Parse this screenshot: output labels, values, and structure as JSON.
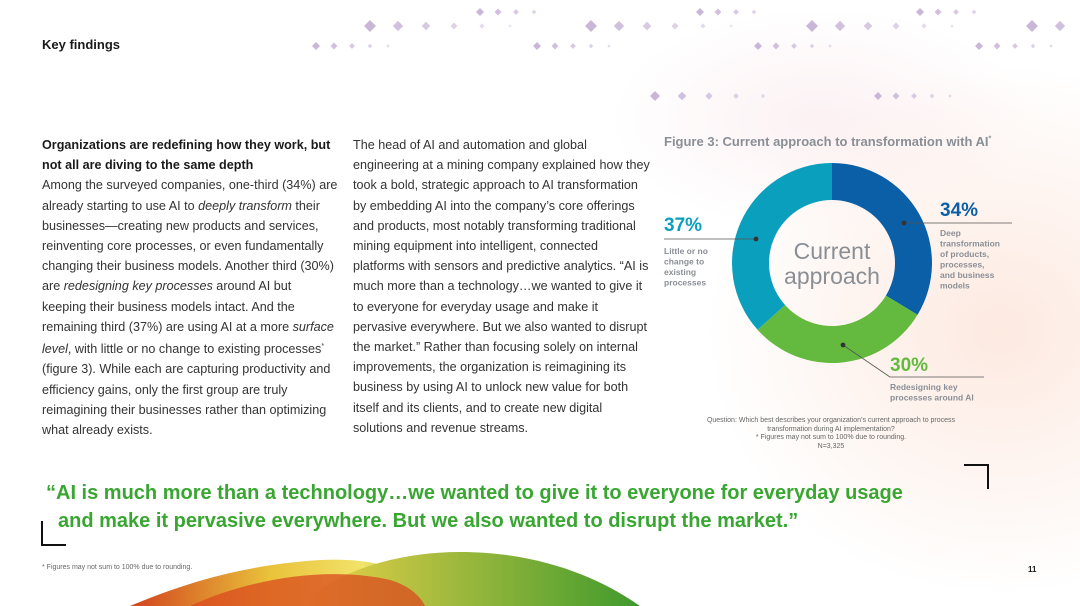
{
  "header": {
    "title": "Key findings"
  },
  "column1": {
    "heading": "Organizations are redefining how they work, but not all are diving to the same depth",
    "p1": "Among the surveyed companies, one-third (34%) are already starting to use AI to ",
    "em1": "deeply transform",
    "p2": " their businesses—creating new products and services, reinventing core processes, or even fundamentally changing their business models. Another third (30%) are ",
    "em2": "redesigning key processes",
    "p3": " around AI but keeping their business models intact. And the remaining third (37%) are using AI at a more ",
    "em3": "surface level",
    "p4": ", with little or no change to existing processes",
    "sup": "*",
    "p5": " (figure 3). While each are capturing productivity and efficiency gains, only the first group are truly reimagining their businesses rather than optimizing what already exists."
  },
  "column2": {
    "text": "The head of AI and automation and global engineering at a mining company explained how they took a bold, strategic approach to AI transformation by embedding AI into the company’s core offerings and products, most notably transforming traditional mining equipment into intelligent, connected platforms with sensors and predictive analytics. “AI is much more than a technology…we wanted to give it to everyone for everyday usage and make it pervasive everywhere. But we also wanted to disrupt the market.” Rather than focusing solely on internal improvements, the organization is reimagining its business by using AI to unlock new value for both itself and its clients, and to create new digital solutions and revenue streams."
  },
  "figure": {
    "title": "Figure 3: Current approach to transformation with AI",
    "title_sup": "*",
    "center_line1": "Current",
    "center_line2": "approach",
    "question": "Question: Which best describes your organization’s current approach to process transformation during AI implementation?",
    "rounding_note": "* Figures may not sum to 100% due to rounding.",
    "n": "N=3,325"
  },
  "chart_data": {
    "type": "pie",
    "title": "Figure 3: Current approach to transformation with AI",
    "slices": [
      {
        "label": "Deep transformation of products, processes, and business models",
        "value": 34,
        "display": "34%",
        "color": "#0a5fa6"
      },
      {
        "label": "Redesigning key processes around AI",
        "value": 30,
        "display": "30%",
        "color": "#63ba3f"
      },
      {
        "label": "Little or no change to existing processes",
        "value": 37,
        "display": "37%",
        "color": "#0b9fbe"
      }
    ]
  },
  "chart_labels": {
    "deep_lines": [
      "Deep",
      "transformation",
      "of products,",
      "processes,",
      "and business",
      "models"
    ],
    "redesign_lines": [
      "Redesigning key",
      "processes around AI"
    ],
    "little_lines": [
      "Little or no",
      "change to",
      "existing",
      "processes"
    ]
  },
  "quote": {
    "line1": "“AI is much more than a technology…we wanted to give it to everyone for everyday usage",
    "line2": "and make it pervasive everywhere. But we also wanted to disrupt the market.”"
  },
  "footer": {
    "footnote": "* Figures may not sum to 100% due to rounding.",
    "page_number": "11"
  },
  "colors": {
    "deep": "#0a5fa6",
    "redesign": "#63ba3f",
    "little": "#0b9fbe",
    "quote_green": "#39a632",
    "diamond": "#c7b3d6"
  }
}
